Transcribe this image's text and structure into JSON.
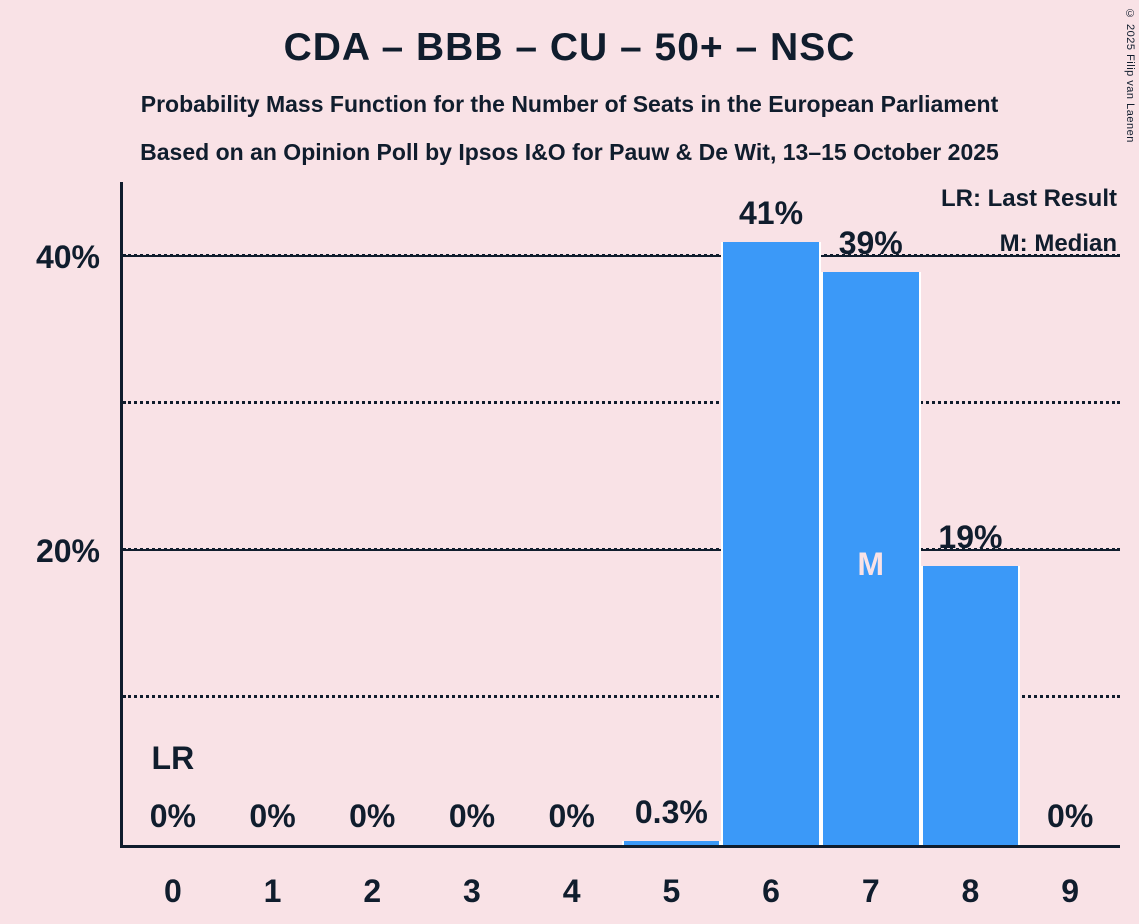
{
  "meta": {
    "copyright": "© 2025 Filip van Laenen"
  },
  "header": {
    "title": "CDA – BBB – CU – 50+ – NSC",
    "subtitle1": "Probability Mass Function for the Number of Seats in the European Parliament",
    "subtitle2": "Based on an Opinion Poll by Ipsos I&O for Pauw & De Wit, 13–15 October 2025"
  },
  "legend": {
    "last_result": "LR: Last Result",
    "median": "M: Median"
  },
  "chart_data": {
    "type": "bar",
    "title": "CDA – BBB – CU – 50+ – NSC",
    "xlabel": "",
    "ylabel": "",
    "categories": [
      "0",
      "1",
      "2",
      "3",
      "4",
      "5",
      "6",
      "7",
      "8",
      "9"
    ],
    "values": [
      0,
      0,
      0,
      0,
      0,
      0.3,
      41,
      39,
      19,
      0
    ],
    "bar_labels": [
      "0%",
      "0%",
      "0%",
      "0%",
      "0%",
      "0.3%",
      "41%",
      "39%",
      "19%",
      "0%"
    ],
    "ylim": [
      0,
      45.1
    ],
    "yticks": [
      {
        "value": 20,
        "label": "20%"
      },
      {
        "value": 40,
        "label": "40%"
      }
    ],
    "gridlines": [
      {
        "value": 10,
        "style": "dotted"
      },
      {
        "value": 20,
        "style": "dotted"
      },
      {
        "value": 20,
        "style": "solid"
      },
      {
        "value": 30,
        "style": "dotted"
      },
      {
        "value": 40,
        "style": "dotted"
      },
      {
        "value": 40,
        "style": "solid"
      }
    ],
    "legend_position": "top-right",
    "median_seat": 7,
    "median_marker": "M",
    "last_result_seat": 0,
    "last_result_marker": "LR",
    "colors": {
      "bar": "#3B99F8",
      "background": "#F9E2E6",
      "text": "#101D2D",
      "bar_separator": "#FFFFFF",
      "median_marker_text": "#F9E2E6"
    }
  }
}
